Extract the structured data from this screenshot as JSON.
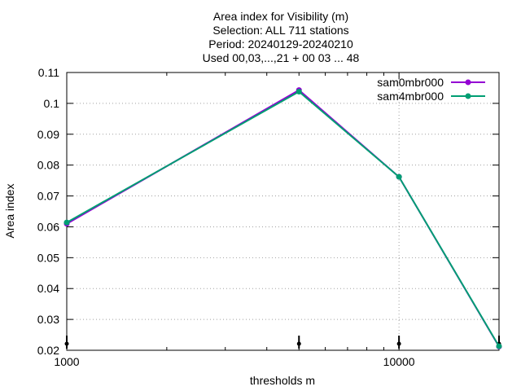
{
  "chart_data": {
    "type": "line",
    "title_lines": [
      "Area index  for Visibility (m)",
      "Selection: ALL    711 stations",
      "Period: 20240129-20240210",
      "Used 00,03,...,21 + 00 03 ... 48"
    ],
    "xlabel": "thresholds m",
    "ylabel": "Area index",
    "x_scale": "log",
    "xlim": [
      1000,
      20000
    ],
    "ylim": [
      0.02,
      0.11
    ],
    "grid": true,
    "legend_position": "top-right",
    "x_ticks": [
      {
        "value": 1000,
        "label": "1000"
      },
      {
        "value": 10000,
        "label": "10000"
      }
    ],
    "y_ticks": [
      {
        "value": 0.02,
        "label": "0.02"
      },
      {
        "value": 0.03,
        "label": "0.03"
      },
      {
        "value": 0.04,
        "label": "0.04"
      },
      {
        "value": 0.05,
        "label": "0.05"
      },
      {
        "value": 0.06,
        "label": "0.06"
      },
      {
        "value": 0.07,
        "label": "0.07"
      },
      {
        "value": 0.08,
        "label": "0.08"
      },
      {
        "value": 0.09,
        "label": "0.09"
      },
      {
        "value": 0.1,
        "label": "0.1"
      },
      {
        "value": 0.11,
        "label": "0.11"
      }
    ],
    "sample_markers_x": [
      1000,
      5000,
      10000,
      20000
    ],
    "x": [
      1000,
      5000,
      10000,
      20000
    ],
    "series": [
      {
        "name": "sam0mbr000",
        "color": "#9400d3",
        "values": [
          0.061,
          0.1043,
          0.0762,
          0.0212
        ]
      },
      {
        "name": "sam4mbr000",
        "color": "#009e73",
        "values": [
          0.0614,
          0.1038,
          0.0762,
          0.0213
        ]
      }
    ]
  }
}
